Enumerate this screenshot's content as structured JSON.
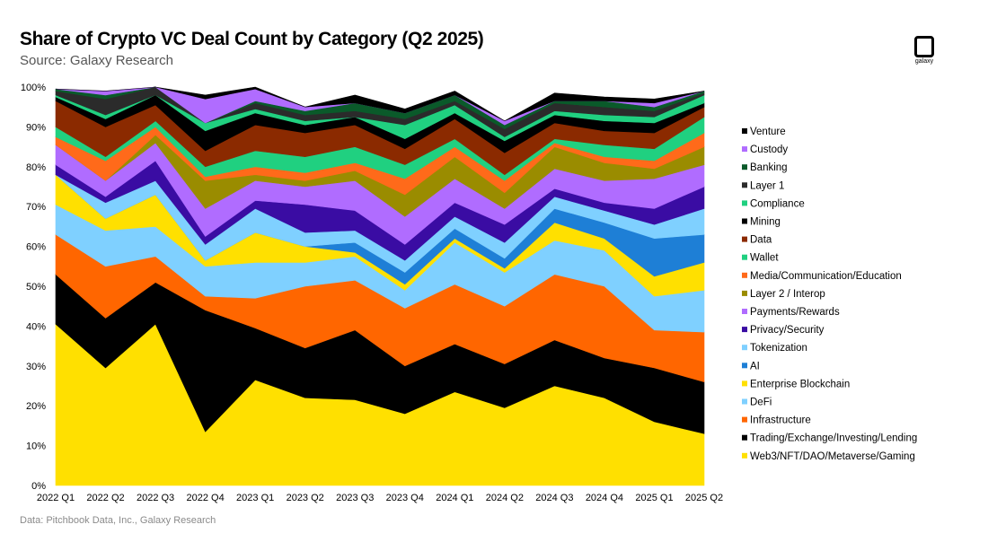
{
  "title": "Share of Crypto VC Deal Count by Category (Q2 2025)",
  "subtitle": "Source: Galaxy Research",
  "footnote": "Data: Pitchbook Data, Inc., Galaxy Research",
  "logo_text": "galaxy",
  "chart_data": {
    "type": "area",
    "stacked": true,
    "title": "Share of Crypto VC Deal Count by Category (Q2 2025)",
    "xlabel": "",
    "ylabel": "",
    "ylim": [
      0,
      100
    ],
    "yticks": [
      "0%",
      "10%",
      "20%",
      "30%",
      "40%",
      "50%",
      "60%",
      "70%",
      "80%",
      "90%",
      "100%"
    ],
    "legend_position": "right",
    "categories": [
      "2022 Q1",
      "2022 Q2",
      "2022 Q3",
      "2022 Q4",
      "2023 Q1",
      "2023 Q2",
      "2023 Q3",
      "2023 Q4",
      "2024 Q1",
      "2024 Q2",
      "2024 Q3",
      "2024 Q4",
      "2025 Q1",
      "2025 Q2"
    ],
    "series": [
      {
        "name": "Web3/NFT/DAO/Metaverse/Gaming",
        "color": "#ffe000",
        "values": [
          40.5,
          29.5,
          40.5,
          13.5,
          26.5,
          22,
          21.5,
          18,
          23.5,
          19.5,
          25,
          22,
          16,
          13
        ]
      },
      {
        "name": "Trading/Exchange/Investing/Lending",
        "color": "#000000",
        "values": [
          12.5,
          12.5,
          10.5,
          30.5,
          13,
          12.5,
          17.5,
          12,
          12,
          11,
          11.5,
          10,
          13.5,
          13
        ]
      },
      {
        "name": "Infrastructure",
        "color": "#ff6600",
        "values": [
          10,
          13,
          6.5,
          3.5,
          7.5,
          15.5,
          12.5,
          14.5,
          15,
          14.5,
          16.5,
          18,
          9.5,
          12.5
        ]
      },
      {
        "name": "DeFi",
        "color": "#7fd0ff",
        "values": [
          7.5,
          9,
          7.5,
          7.5,
          9,
          6,
          6,
          4.5,
          10.5,
          8.5,
          8.5,
          9,
          8.5,
          10.5
        ]
      },
      {
        "name": "Enterprise Blockchain",
        "color": "#ffe000",
        "values": [
          7.5,
          3,
          8,
          1.5,
          7.5,
          4,
          1,
          1.5,
          1,
          1,
          4.5,
          3,
          5,
          7
        ]
      },
      {
        "name": "AI",
        "color": "#1e7fd6",
        "values": [
          0,
          0,
          0,
          0,
          0,
          0,
          2.5,
          3,
          2.5,
          2.5,
          3.5,
          4,
          9.5,
          7
        ]
      },
      {
        "name": "Tokenization",
        "color": "#7fd0ff",
        "values": [
          0,
          4,
          3.5,
          4,
          6,
          3.5,
          3,
          3,
          3,
          4,
          3,
          3,
          3.5,
          6.5
        ]
      },
      {
        "name": "Privacy/Security",
        "color": "#3a0ca3",
        "values": [
          2.5,
          1.5,
          5,
          2,
          2,
          7,
          5,
          4,
          3.5,
          4.5,
          2,
          2,
          4,
          5.5
        ]
      },
      {
        "name": "Payments/Rewards",
        "color": "#b06cff",
        "values": [
          5,
          4,
          4.5,
          7,
          5,
          4.5,
          7.5,
          7,
          6,
          4,
          5,
          5.5,
          7.5,
          5.5
        ]
      },
      {
        "name": "Layer 2 / Interop",
        "color": "#9a8c00",
        "values": [
          0,
          0,
          2,
          7,
          1.5,
          1.5,
          2.5,
          5.5,
          5.5,
          4,
          5.5,
          4.5,
          2.5,
          4.5
        ]
      },
      {
        "name": "Media/Communication/Education",
        "color": "#ff6a1a",
        "values": [
          2,
          5,
          2,
          1,
          2,
          2,
          2,
          4,
          2.5,
          3,
          1,
          1.5,
          2,
          3.5
        ]
      },
      {
        "name": "Wallet",
        "color": "#20d080",
        "values": [
          2.5,
          1,
          1.5,
          2.5,
          4,
          4,
          4,
          3.5,
          2,
          1.5,
          1,
          3,
          3,
          4
        ]
      },
      {
        "name": "Data",
        "color": "#8b2a00",
        "values": [
          6.5,
          7.5,
          4,
          4,
          6.5,
          6,
          5.5,
          4,
          5,
          5.5,
          4,
          3.5,
          4,
          2.5
        ]
      },
      {
        "name": "Mining",
        "color": "#000000",
        "values": [
          1,
          2,
          2.5,
          5,
          3,
          2,
          2,
          2.5,
          1.5,
          3,
          2,
          2.5,
          2.5,
          1
        ]
      },
      {
        "name": "Compliance",
        "color": "#20d080",
        "values": [
          0.5,
          1,
          0,
          2,
          1,
          1,
          0,
          3.5,
          2,
          1,
          1,
          1.5,
          1.5,
          2
        ]
      },
      {
        "name": "Layer 1",
        "color": "#2b2b2b",
        "values": [
          1,
          4,
          3,
          0,
          1.5,
          1.5,
          1.5,
          1.5,
          1,
          2,
          2,
          2,
          1.5,
          0.5
        ]
      },
      {
        "name": "Banking",
        "color": "#0a5a2a",
        "values": [
          0.5,
          1,
          0,
          0,
          0.5,
          1,
          2,
          1.5,
          1.5,
          1,
          0.5,
          1.5,
          1,
          0.5
        ]
      },
      {
        "name": "Custody",
        "color": "#b06cff",
        "values": [
          0,
          1,
          0,
          6,
          3,
          1,
          0,
          0,
          0,
          1,
          0,
          0,
          1,
          0
        ]
      },
      {
        "name": "Venture",
        "color": "#000000",
        "values": [
          0,
          0,
          0,
          1,
          1,
          0,
          2,
          1,
          1,
          0,
          2,
          1,
          1,
          0
        ]
      }
    ],
    "legend_order": [
      "Venture",
      "Custody",
      "Banking",
      "Layer 1",
      "Compliance",
      "Mining",
      "Data",
      "Wallet",
      "Media/Communication/Education",
      "Layer 2 / Interop",
      "Payments/Rewards",
      "Privacy/Security",
      "Tokenization",
      "AI",
      "Enterprise Blockchain",
      "DeFi",
      "Infrastructure",
      "Trading/Exchange/Investing/Lending",
      "Web3/NFT/DAO/Metaverse/Gaming"
    ]
  }
}
